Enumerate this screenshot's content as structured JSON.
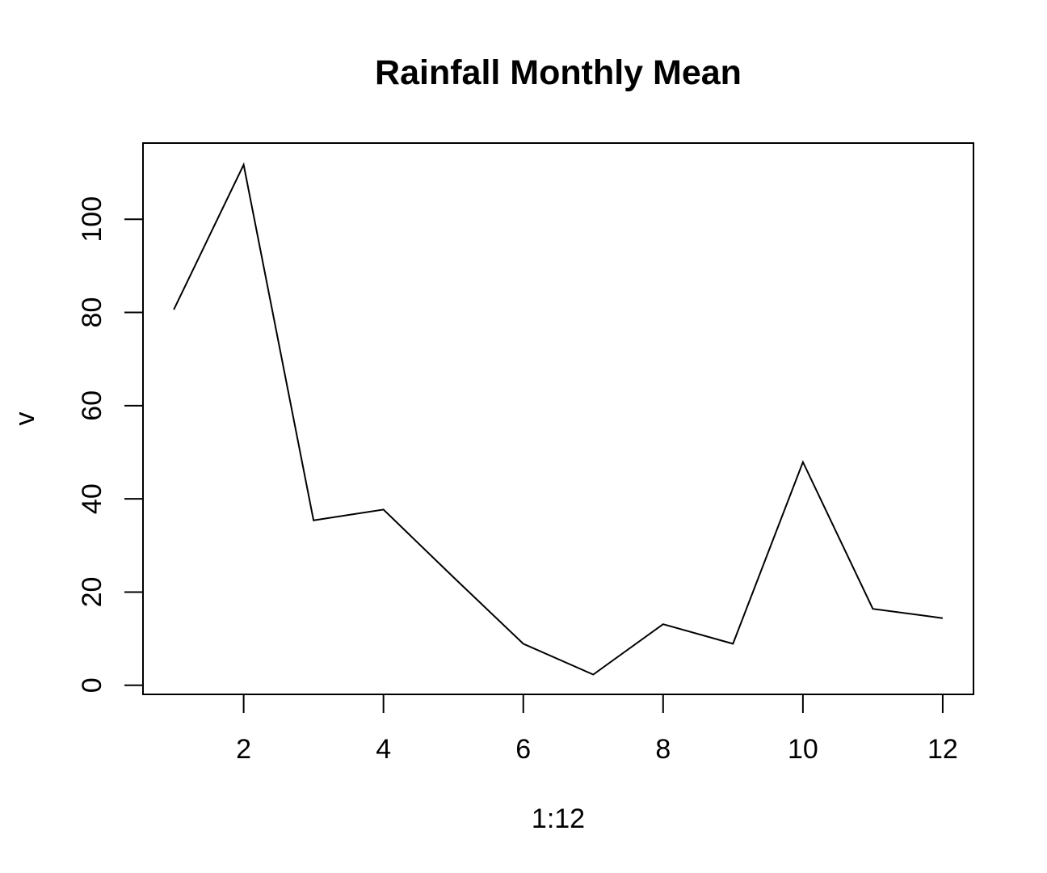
{
  "chart_data": {
    "type": "line",
    "title": "Rainfall Monthly Mean",
    "xlabel": "1:12",
    "ylabel": "v",
    "x": [
      1,
      2,
      3,
      4,
      5,
      6,
      7,
      8,
      9,
      10,
      11,
      12
    ],
    "values": [
      80.6,
      111.7,
      35.4,
      37.7,
      23.2,
      8.9,
      2.3,
      13.1,
      8.9,
      47.9,
      16.4,
      14.4
    ],
    "xticks": [
      2,
      4,
      6,
      8,
      10,
      12
    ],
    "yticks": [
      0,
      20,
      40,
      60,
      80,
      100
    ],
    "xlim": [
      0.56,
      12.44
    ],
    "ylim": [
      -1.95,
      116.35
    ],
    "grid": false,
    "legend": "none",
    "line_color": "#000000"
  }
}
